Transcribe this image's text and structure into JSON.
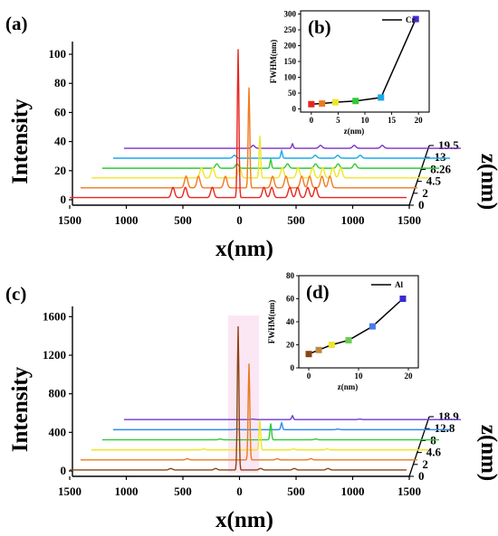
{
  "chart_data": [
    {
      "panel_label": "(a)",
      "type": "line",
      "title": "",
      "xlabel": "x(nm)",
      "ylabel": "Intensity",
      "zlabel": "z(nm)",
      "x_ticks": [
        "1500",
        "1000",
        "500",
        "0",
        "500",
        "1000",
        "1500"
      ],
      "y_ticks": [
        "0",
        "20",
        "40",
        "60",
        "80",
        "100"
      ],
      "ylim": [
        0,
        105
      ],
      "z_ticks": [
        "0",
        "2",
        "4.5",
        "8.26",
        "13",
        "19.5"
      ],
      "series": [
        {
          "z": "0",
          "color": "#e8261f",
          "peak": 102,
          "bg": 1.5,
          "ripple": 7,
          "satellites": [
            -580,
            -470,
            -230,
            230,
            300,
            460,
            530,
            620,
            690
          ]
        },
        {
          "z": "2",
          "color": "#f07a20",
          "peak": 69,
          "bg": 1.2,
          "ripple": 8,
          "satellites": [
            -560,
            -450,
            -210,
            210,
            330,
            470,
            540,
            650,
            720
          ]
        },
        {
          "z": "4.5",
          "color": "#f0e52a",
          "peak": 29,
          "bg": 1.0,
          "ripple": 7,
          "satellites": [
            -520,
            -420,
            -180,
            200,
            340,
            470,
            560,
            650,
            720
          ]
        },
        {
          "z": "8.26",
          "color": "#2ecb34",
          "peak": 6,
          "bg": 0.6,
          "ripple": 3,
          "satellites": [
            -480,
            -300,
            150,
            400,
            600,
            750
          ]
        },
        {
          "z": "13",
          "color": "#1aa8e8",
          "peak": 5,
          "bg": 0.5,
          "ripple": 2,
          "satellites": [
            -420,
            300,
            500,
            700
          ]
        },
        {
          "z": "19.5",
          "color": "#7a30c8",
          "peak": 3,
          "bg": 0.3,
          "ripple": 2,
          "satellites": [
            -350,
            250,
            550,
            800
          ]
        }
      ],
      "inset": {
        "panel_label": "(b)",
        "type": "line",
        "xlabel": "z(nm)",
        "ylabel": "FWHM(nm)",
        "legend": "Cr",
        "x_ticks": [
          0,
          5,
          10,
          15,
          20
        ],
        "y_ticks": [
          0,
          50,
          100,
          150,
          200,
          250,
          300
        ],
        "xlim": [
          -2,
          22
        ],
        "ylim": [
          -10,
          310
        ],
        "x": [
          0,
          2,
          4.5,
          8.26,
          13,
          19.5
        ],
        "y": [
          15,
          17,
          21,
          25,
          36,
          284
        ],
        "marker_colors": [
          "#e8261f",
          "#f07a20",
          "#f0e52a",
          "#2ecb34",
          "#1aa8e8",
          "#4a2ad0"
        ]
      }
    },
    {
      "panel_label": "(c)",
      "type": "line",
      "title": "",
      "xlabel": "x(nm)",
      "ylabel": "Intensity",
      "zlabel": "z(nm)",
      "x_ticks": [
        "1500",
        "1000",
        "500",
        "0",
        "500",
        "1000",
        "1500"
      ],
      "y_ticks": [
        "0",
        "400",
        "800",
        "1200",
        "1600"
      ],
      "ylim": [
        0,
        1650
      ],
      "z_ticks": [
        "0",
        "2",
        "4.6",
        "8",
        "12.8",
        "18.9"
      ],
      "series": [
        {
          "z": "0",
          "color": "#8b4513",
          "peak": 1490,
          "bg": 10,
          "ripple": 15,
          "satellites": [
            -600,
            -200,
            200,
            500,
            800
          ]
        },
        {
          "z": "2",
          "color": "#e87a20",
          "peak": 1000,
          "bg": 8,
          "ripple": 12,
          "satellites": [
            -550,
            250,
            550
          ]
        },
        {
          "z": "4.6",
          "color": "#f0e52a",
          "peak": 310,
          "bg": 6,
          "ripple": 10,
          "satellites": [
            -500,
            300,
            600
          ]
        },
        {
          "z": "8",
          "color": "#2ecb34",
          "peak": 170,
          "bg": 5,
          "ripple": 8,
          "satellites": [
            -450,
            400
          ]
        },
        {
          "z": "12.8",
          "color": "#2e8be8",
          "peak": 70,
          "bg": 4,
          "ripple": 6,
          "satellites": [
            -400,
            500
          ]
        },
        {
          "z": "18.9",
          "color": "#6a3ad8",
          "peak": 40,
          "bg": 3,
          "ripple": 5,
          "satellites": [
            -350,
            600
          ]
        }
      ],
      "inset": {
        "panel_label": "(d)",
        "type": "line",
        "xlabel": "z(nm)",
        "ylabel": "FWHM(nm)",
        "legend": "Al",
        "x_ticks": [
          0,
          10,
          20
        ],
        "y_ticks": [
          0,
          20,
          40,
          60,
          80
        ],
        "xlim": [
          -2,
          22
        ],
        "ylim": [
          0,
          80
        ],
        "x": [
          0,
          2,
          4.6,
          8,
          12.8,
          18.9
        ],
        "y": [
          12,
          15.5,
          20,
          24,
          36,
          60
        ],
        "marker_colors": [
          "#8b4513",
          "#c08a3a",
          "#f0e52a",
          "#6acb54",
          "#4a7ae8",
          "#3a2ad0"
        ]
      }
    }
  ]
}
